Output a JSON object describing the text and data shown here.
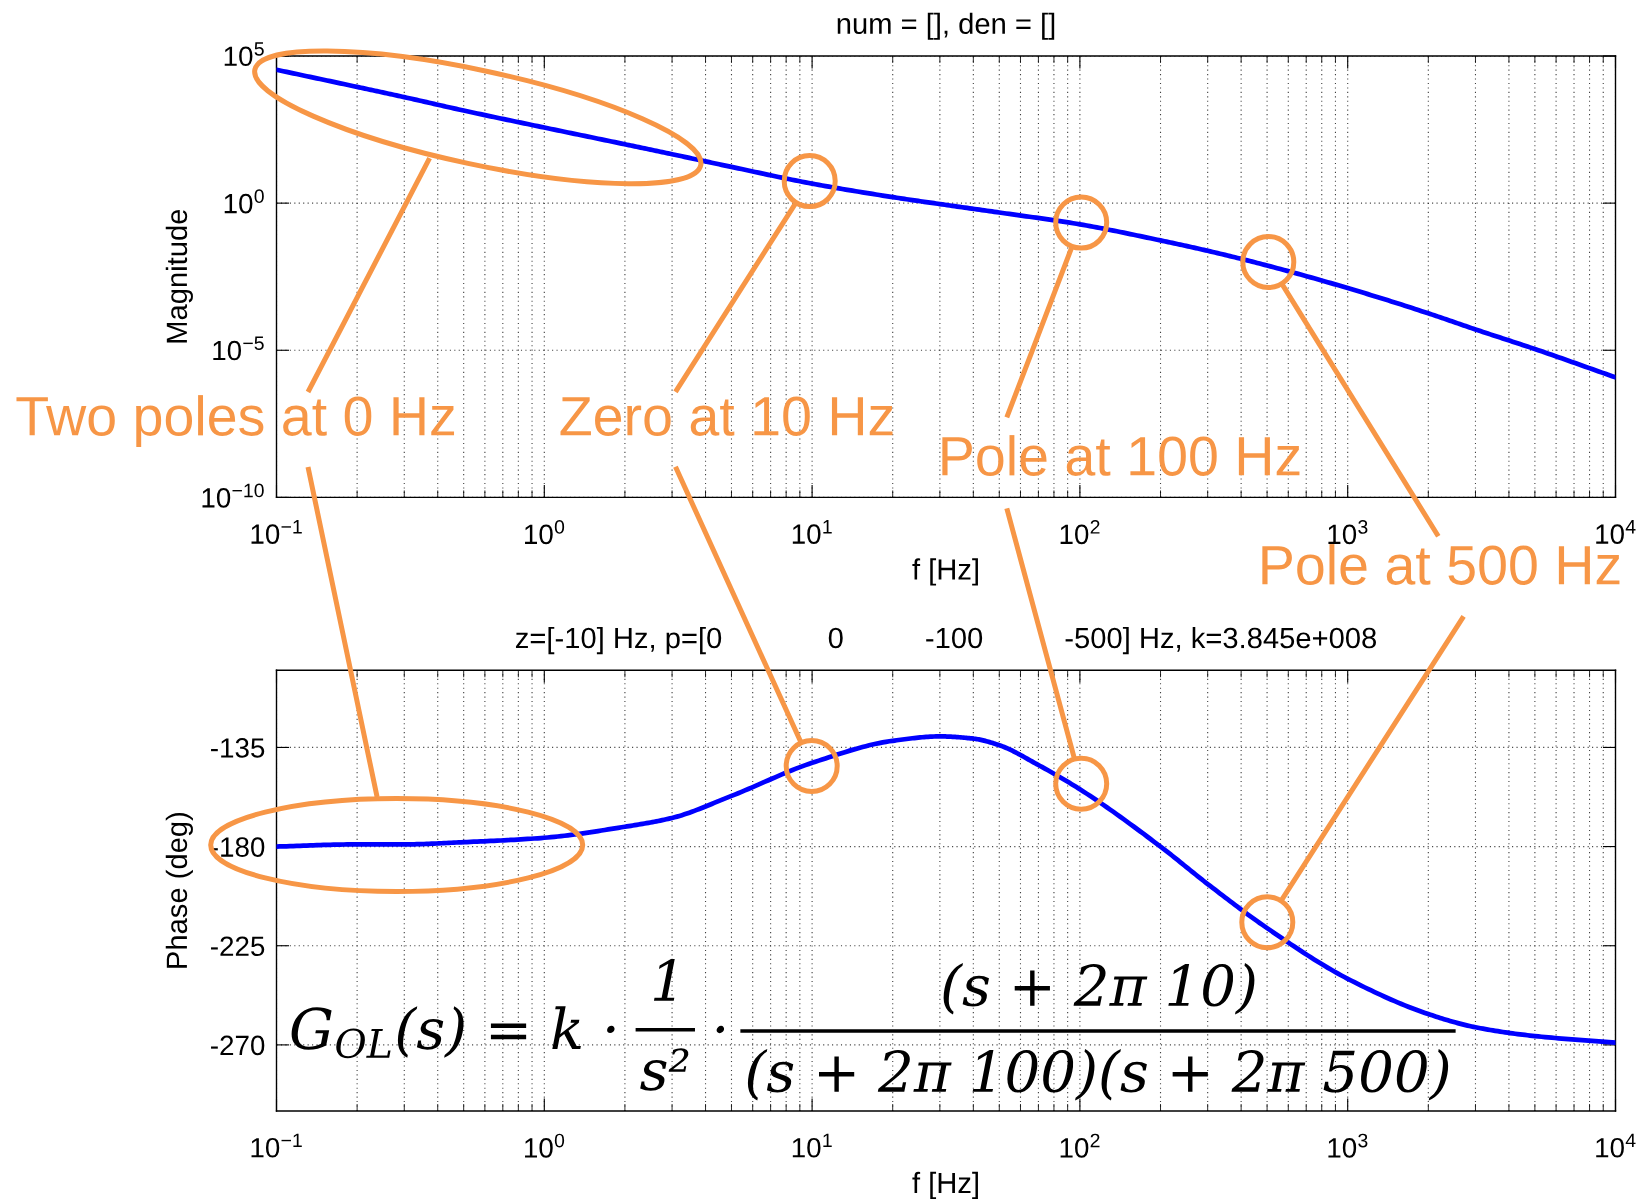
{
  "chart_data": [
    {
      "type": "line",
      "title": "num = [], den = []",
      "xlabel": "f [Hz]",
      "ylabel": "Magnitude",
      "log": "xy",
      "x": [
        0.1,
        0.2,
        0.3,
        0.5,
        1,
        2,
        3,
        5,
        10,
        20,
        30,
        50,
        100,
        200,
        300,
        500,
        1000,
        2000,
        3000,
        5000,
        10000
      ],
      "series": [
        {
          "color": "#0000ff",
          "values": [
            34000,
            8900,
            4000,
            1400,
            370,
            100,
            46,
            17,
            4.6,
            1.6,
            0.93,
            0.48,
            0.19,
            0.054,
            0.024,
            0.0076,
            0.0013,
            0.00018,
            5.1e-05,
            1.1e-05,
            1.2e-06
          ]
        }
      ],
      "xlim": [
        0.1,
        10000
      ],
      "ylim": [
        1e-10,
        100000
      ],
      "xticks": [
        {
          "value": 0.1,
          "label": "10$^{−1}$"
        },
        {
          "value": 0.2,
          "label": null
        },
        {
          "value": 0.3,
          "label": null
        },
        {
          "value": 0.4,
          "label": null
        },
        {
          "value": 0.5,
          "label": null
        },
        {
          "value": 0.6,
          "label": null
        },
        {
          "value": 0.7,
          "label": null
        },
        {
          "value": 0.8,
          "label": null
        },
        {
          "value": 0.9,
          "label": null
        },
        {
          "value": 1,
          "label": "10$^{0}$"
        },
        {
          "value": 2,
          "label": null
        },
        {
          "value": 3,
          "label": null
        },
        {
          "value": 4,
          "label": null
        },
        {
          "value": 5,
          "label": null
        },
        {
          "value": 6,
          "label": null
        },
        {
          "value": 7,
          "label": null
        },
        {
          "value": 8,
          "label": null
        },
        {
          "value": 9,
          "label": null
        },
        {
          "value": 10,
          "label": "10$^{1}$"
        },
        {
          "value": 20,
          "label": null
        },
        {
          "value": 30,
          "label": null
        },
        {
          "value": 40,
          "label": null
        },
        {
          "value": 50,
          "label": null
        },
        {
          "value": 60,
          "label": null
        },
        {
          "value": 70,
          "label": null
        },
        {
          "value": 80,
          "label": null
        },
        {
          "value": 90,
          "label": null
        },
        {
          "value": 100,
          "label": "10$^{2}$"
        },
        {
          "value": 200,
          "label": null
        },
        {
          "value": 300,
          "label": null
        },
        {
          "value": 400,
          "label": null
        },
        {
          "value": 500,
          "label": null
        },
        {
          "value": 600,
          "label": null
        },
        {
          "value": 700,
          "label": null
        },
        {
          "value": 800,
          "label": null
        },
        {
          "value": 900,
          "label": null
        },
        {
          "value": 1000,
          "label": "10$^{3}$"
        },
        {
          "value": 2000,
          "label": null
        },
        {
          "value": 3000,
          "label": null
        },
        {
          "value": 4000,
          "label": null
        },
        {
          "value": 5000,
          "label": null
        },
        {
          "value": 6000,
          "label": null
        },
        {
          "value": 7000,
          "label": null
        },
        {
          "value": 8000,
          "label": null
        },
        {
          "value": 9000,
          "label": null
        },
        {
          "value": 10000,
          "label": "10$^{4}$"
        }
      ],
      "yticks": [
        {
          "value": 1e-10,
          "label": "10$^{−10}$"
        },
        {
          "value": 1e-05,
          "label": "10$^{−5}$"
        },
        {
          "value": 1,
          "label": "10$^{0}$"
        },
        {
          "value": 100000,
          "label": "10$^{5}$"
        }
      ],
      "grid": true,
      "annotations": [
        "Two poles at 0 Hz",
        "Zero at 10 Hz",
        "Pole at 100 Hz",
        "Pole at 500 Hz"
      ]
    },
    {
      "type": "line",
      "title": "z=[-10] Hz, p=[0             0          -100          -500] Hz, k=3.845e+008",
      "xlabel": "f [Hz]",
      "ylabel": "Phase (deg)",
      "log": "x",
      "x": [
        0.1,
        0.2,
        0.3,
        0.5,
        1,
        2,
        3,
        5,
        10,
        20,
        30,
        40,
        50,
        70,
        100,
        200,
        300,
        500,
        1000,
        2000,
        3000,
        5000,
        10000
      ],
      "series": [
        {
          "color": "#0000ff",
          "values": [
            -180,
            -179,
            -179,
            -178,
            -176,
            -171,
            -167,
            -157,
            -142,
            -132,
            -130,
            -131,
            -134,
            -143,
            -154,
            -180,
            -197,
            -217,
            -240,
            -256,
            -262,
            -266,
            -269
          ]
        }
      ],
      "xlim": [
        0.1,
        10000
      ],
      "ylim": [
        -300,
        -100
      ],
      "xticks": [
        {
          "value": 0.1,
          "label": "10$^{−1}$"
        },
        {
          "value": 0.2,
          "label": null
        },
        {
          "value": 0.3,
          "label": null
        },
        {
          "value": 0.4,
          "label": null
        },
        {
          "value": 0.5,
          "label": null
        },
        {
          "value": 0.6,
          "label": null
        },
        {
          "value": 0.7,
          "label": null
        },
        {
          "value": 0.8,
          "label": null
        },
        {
          "value": 0.9,
          "label": null
        },
        {
          "value": 1,
          "label": "10$^{0}$"
        },
        {
          "value": 2,
          "label": null
        },
        {
          "value": 3,
          "label": null
        },
        {
          "value": 4,
          "label": null
        },
        {
          "value": 5,
          "label": null
        },
        {
          "value": 6,
          "label": null
        },
        {
          "value": 7,
          "label": null
        },
        {
          "value": 8,
          "label": null
        },
        {
          "value": 9,
          "label": null
        },
        {
          "value": 10,
          "label": "10$^{1}$"
        },
        {
          "value": 20,
          "label": null
        },
        {
          "value": 30,
          "label": null
        },
        {
          "value": 40,
          "label": null
        },
        {
          "value": 50,
          "label": null
        },
        {
          "value": 60,
          "label": null
        },
        {
          "value": 70,
          "label": null
        },
        {
          "value": 80,
          "label": null
        },
        {
          "value": 90,
          "label": null
        },
        {
          "value": 100,
          "label": "10$^{2}$"
        },
        {
          "value": 200,
          "label": null
        },
        {
          "value": 300,
          "label": null
        },
        {
          "value": 400,
          "label": null
        },
        {
          "value": 500,
          "label": null
        },
        {
          "value": 600,
          "label": null
        },
        {
          "value": 700,
          "label": null
        },
        {
          "value": 800,
          "label": null
        },
        {
          "value": 900,
          "label": null
        },
        {
          "value": 1000,
          "label": "10$^{3}$"
        },
        {
          "value": 2000,
          "label": null
        },
        {
          "value": 3000,
          "label": null
        },
        {
          "value": 4000,
          "label": null
        },
        {
          "value": 5000,
          "label": null
        },
        {
          "value": 6000,
          "label": null
        },
        {
          "value": 7000,
          "label": null
        },
        {
          "value": 8000,
          "label": null
        },
        {
          "value": 9000,
          "label": null
        },
        {
          "value": 10000,
          "label": "10$^{4}$"
        }
      ],
      "yticks": [
        -270,
        -225,
        -180,
        -135
      ],
      "grid": true,
      "annotations": [
        "G$_{OL}$(s) = k ·",
        "1",
        "s²",
        "·",
        "(s + 2π 10)",
        "(s + 2π 100)(s + 2π 500)"
      ]
    }
  ]
}
